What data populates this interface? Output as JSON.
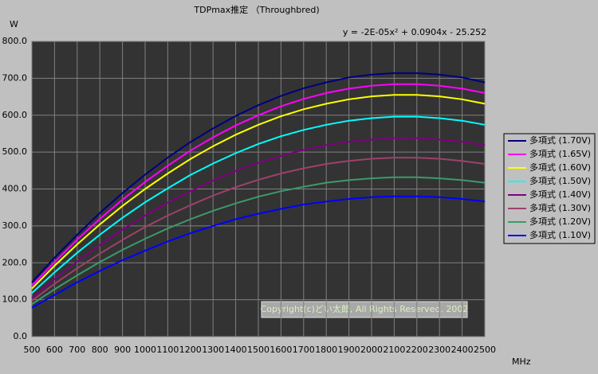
{
  "chart_data": {
    "type": "line",
    "title": "TDPmax推定 （Throughbred)",
    "y_label": "W",
    "x_label": "MHz",
    "annotations": [
      "y = -2E-05x² + 0.0904x - 25.252",
      "Copyright(c)どい太郎, All Rights Reserved. 2002"
    ],
    "x": [
      500,
      600,
      700,
      800,
      900,
      1000,
      1100,
      1200,
      1300,
      1400,
      1500,
      1600,
      1700,
      1800,
      1900,
      2000,
      2100,
      2200,
      2300,
      2400,
      2500
    ],
    "xlim": [
      500,
      2500
    ],
    "xticks": [
      500,
      600,
      700,
      800,
      900,
      1000,
      1100,
      1200,
      1300,
      1400,
      1500,
      1600,
      1700,
      1800,
      1900,
      2000,
      2100,
      2200,
      2300,
      2400,
      2500
    ],
    "ylim": [
      0,
      800
    ],
    "yticks": [
      {
        "value": 0,
        "label": "0.0"
      },
      {
        "value": 100,
        "label": "100.0"
      },
      {
        "value": 200,
        "label": "200.0"
      },
      {
        "value": 300,
        "label": "300.0"
      },
      {
        "value": 400,
        "label": "400.0"
      },
      {
        "value": 500,
        "label": "500.0"
      },
      {
        "value": 600,
        "label": "600.0"
      },
      {
        "value": 700,
        "label": "700.0"
      },
      {
        "value": 800,
        "label": "800.0"
      }
    ],
    "grid": true,
    "legend": "right",
    "series": [
      {
        "name": "多項式 (1.70V)",
        "color": "#000080",
        "values": [
          147,
          214,
          276,
          335,
          389,
          439,
          485,
          527,
          564,
          598,
          627,
          652,
          673,
          689,
          702,
          710,
          714,
          714,
          710,
          702,
          689
        ]
      },
      {
        "name": "多項式 (1.65V)",
        "color": "#ff00ff",
        "values": [
          138,
          202,
          263,
          319,
          371,
          419,
          463,
          504,
          540,
          572,
          600,
          624,
          644,
          660,
          672,
          680,
          684,
          684,
          680,
          672,
          660
        ]
      },
      {
        "name": "多項式 (1.60V)",
        "color": "#ffff00",
        "values": [
          130,
          192,
          250,
          304,
          354,
          400,
          442,
          481,
          516,
          547,
          574,
          597,
          616,
          631,
          643,
          651,
          655,
          655,
          651,
          643,
          631
        ]
      },
      {
        "name": "多項式 (1.50V)",
        "color": "#00ffff",
        "values": [
          118,
          174,
          227,
          276,
          322,
          364,
          402,
          438,
          469,
          497,
          522,
          543,
          560,
          574,
          585,
          592,
          596,
          596,
          592,
          585,
          574
        ]
      },
      {
        "name": "多項式 (1.40V)",
        "color": "#800080",
        "values": [
          105,
          156,
          204,
          248,
          290,
          328,
          363,
          394,
          423,
          449,
          471,
          490,
          506,
          519,
          528,
          534,
          538,
          538,
          534,
          528,
          519
        ]
      },
      {
        "name": "多項式 (1.30V)",
        "color": "#a0406a",
        "values": [
          97,
          143,
          185,
          225,
          262,
          297,
          328,
          356,
          382,
          405,
          425,
          442,
          456,
          468,
          476,
          482,
          485,
          485,
          482,
          476,
          468
        ]
      },
      {
        "name": "多項式 (1.20V)",
        "color": "#3c9a6c",
        "values": [
          88,
          128,
          166,
          202,
          235,
          265,
          293,
          318,
          341,
          361,
          379,
          394,
          406,
          417,
          424,
          429,
          432,
          432,
          429,
          424,
          417
        ]
      },
      {
        "name": "多項式 (1.10V)",
        "color": "#0000ff",
        "values": [
          78,
          113,
          147,
          178,
          207,
          233,
          258,
          280,
          300,
          318,
          333,
          346,
          358,
          366,
          373,
          378,
          380,
          380,
          378,
          373,
          366
        ]
      }
    ]
  }
}
